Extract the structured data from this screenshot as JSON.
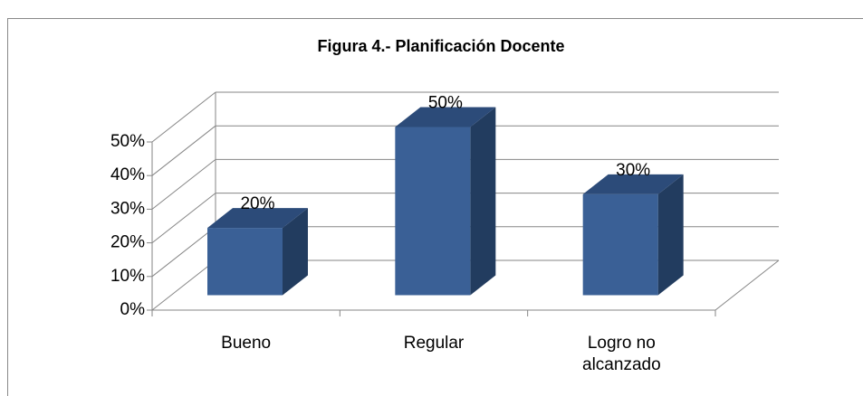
{
  "chart_data": {
    "type": "bar3d",
    "title": "Figura 4.- Planificación Docente",
    "categories": [
      "Bueno",
      "Regular",
      "Logro no alcanzado"
    ],
    "values": [
      20,
      50,
      30
    ],
    "value_labels": [
      "20%",
      "50%",
      "30%"
    ],
    "color": "#3a6096",
    "ylim": [
      0,
      50
    ],
    "yticks": [
      {
        "value": 0,
        "label": "0%"
      },
      {
        "value": 10,
        "label": "10%"
      },
      {
        "value": 20,
        "label": "20%"
      },
      {
        "value": 30,
        "label": "30%"
      },
      {
        "value": 40,
        "label": "40%"
      },
      {
        "value": 50,
        "label": "50%"
      }
    ],
    "grid": true
  }
}
